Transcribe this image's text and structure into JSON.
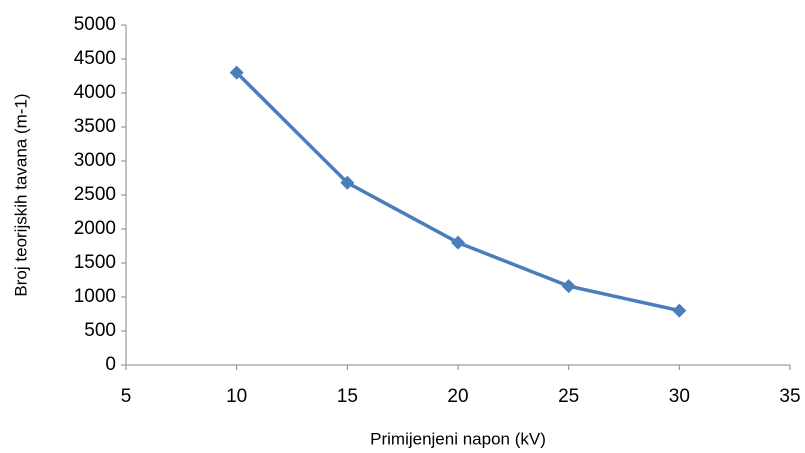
{
  "chart_data": {
    "type": "line",
    "x_label": "Primijenjeni napon (kV)",
    "y_label": "Broj teorijskih tavana (m-1)",
    "x": [
      10,
      15,
      20,
      25,
      30
    ],
    "series": [
      {
        "color": "#4a7ebb",
        "values": [
          4300,
          2680,
          1800,
          1160,
          800
        ]
      }
    ],
    "xlim": [
      5,
      35
    ],
    "xticks": [
      5,
      10,
      15,
      20,
      25,
      30,
      35
    ],
    "ylim": [
      0,
      5000
    ],
    "yticks": [
      0,
      500,
      1000,
      1500,
      2000,
      2500,
      3000,
      3500,
      4000,
      4500,
      5000
    ],
    "grid": false
  }
}
